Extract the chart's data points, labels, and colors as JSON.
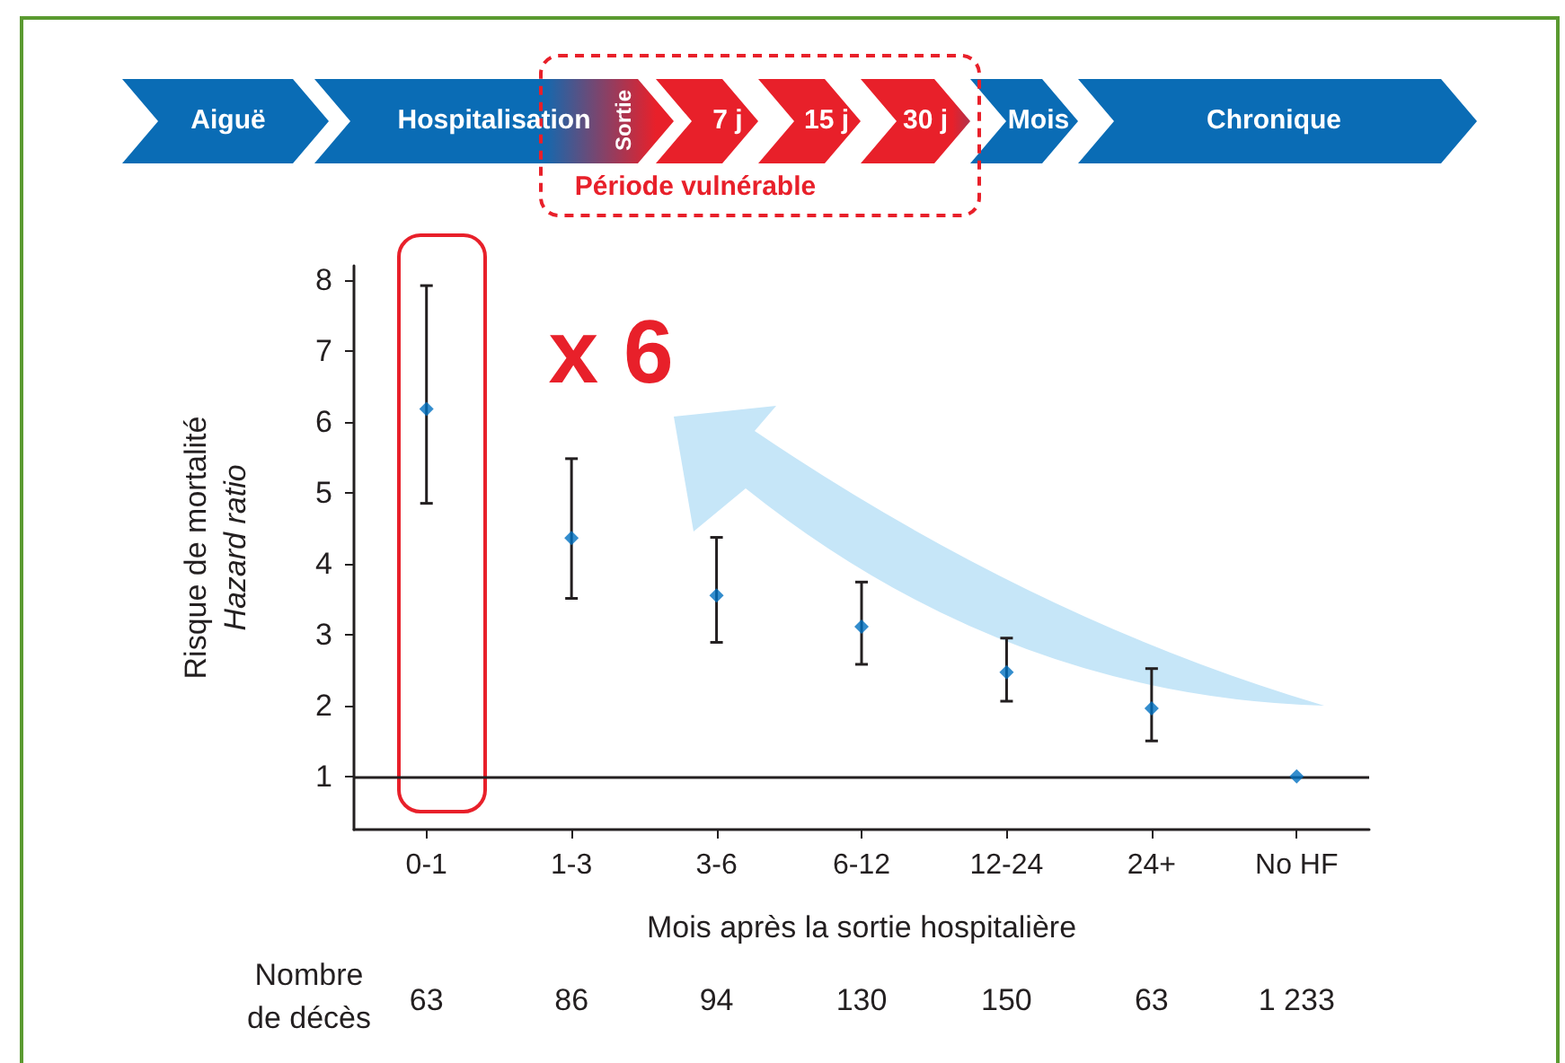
{
  "chart_data": {
    "type": "scatter",
    "xlabel": "Mois après la sortie hospitalière",
    "ylabel": "Risque de mortalité\nHazard ratio",
    "categories": [
      "0-1",
      "1-3",
      "3-6",
      "6-12",
      "12-24",
      "24+",
      "No HF"
    ],
    "values": [
      6.18,
      4.36,
      3.55,
      3.11,
      2.47,
      1.96,
      1
    ],
    "errors": [
      [
        4.85,
        7.92
      ],
      [
        3.51,
        5.48
      ],
      [
        2.89,
        4.37
      ],
      [
        2.58,
        3.74
      ],
      [
        2.06,
        2.95
      ],
      [
        1.5,
        2.52
      ],
      null
    ],
    "color": "#0070c0",
    "marker": "diamond",
    "ylim": [
      0.25,
      8.2
    ],
    "yticks": [
      1,
      2,
      3,
      4,
      5,
      6,
      7,
      8
    ],
    "grid": false,
    "ref_lines": [
      {
        "axis": "y",
        "value": 1,
        "color": "#231f20"
      }
    ],
    "annotations": [
      "Aiguë",
      "Hospitalisation",
      "Sortie",
      "7 j",
      "15 j",
      "30 j",
      "Mois",
      "Chronique",
      "Période vulnérable",
      "x 6",
      "Nombre de décès",
      "63",
      "86",
      "94",
      "130",
      "150",
      "63",
      "1 233"
    ]
  }
}
